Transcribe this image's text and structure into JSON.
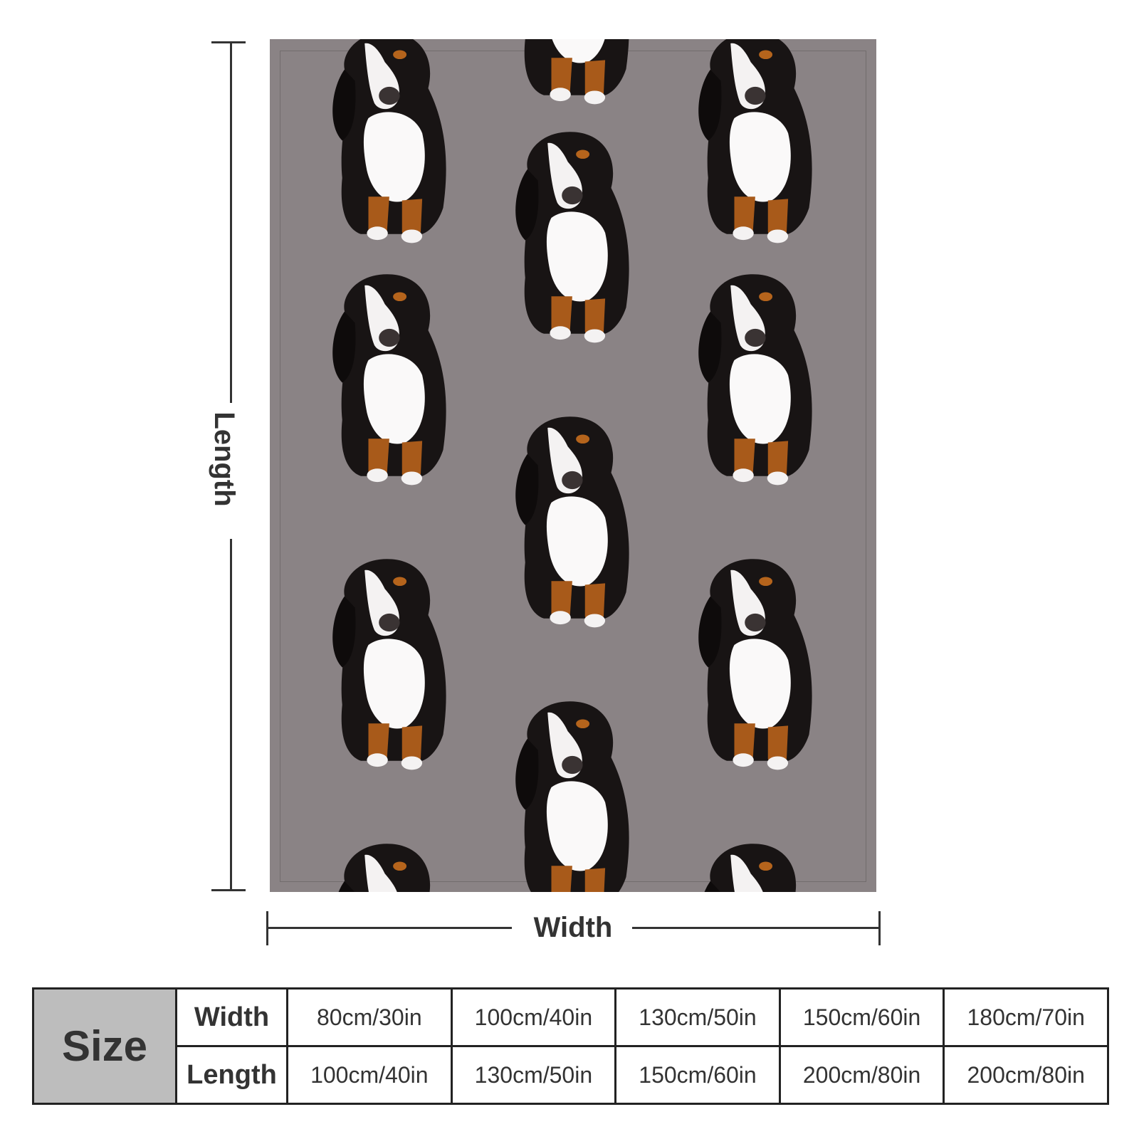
{
  "dimension_labels": {
    "length": "Length",
    "width": "Width"
  },
  "blanket": {
    "background_color": "#8a8385",
    "pattern": "repeating Bernese mountain dog illustration, tilted head, sitting"
  },
  "size_table": {
    "header": "Size",
    "rows": [
      {
        "label": "Width",
        "values": [
          "80cm/30in",
          "100cm/40in",
          "130cm/50in",
          "150cm/60in",
          "180cm/70in"
        ]
      },
      {
        "label": "Length",
        "values": [
          "100cm/40in",
          "130cm/50in",
          "150cm/60in",
          "200cm/80in",
          "200cm/80in"
        ]
      }
    ]
  }
}
